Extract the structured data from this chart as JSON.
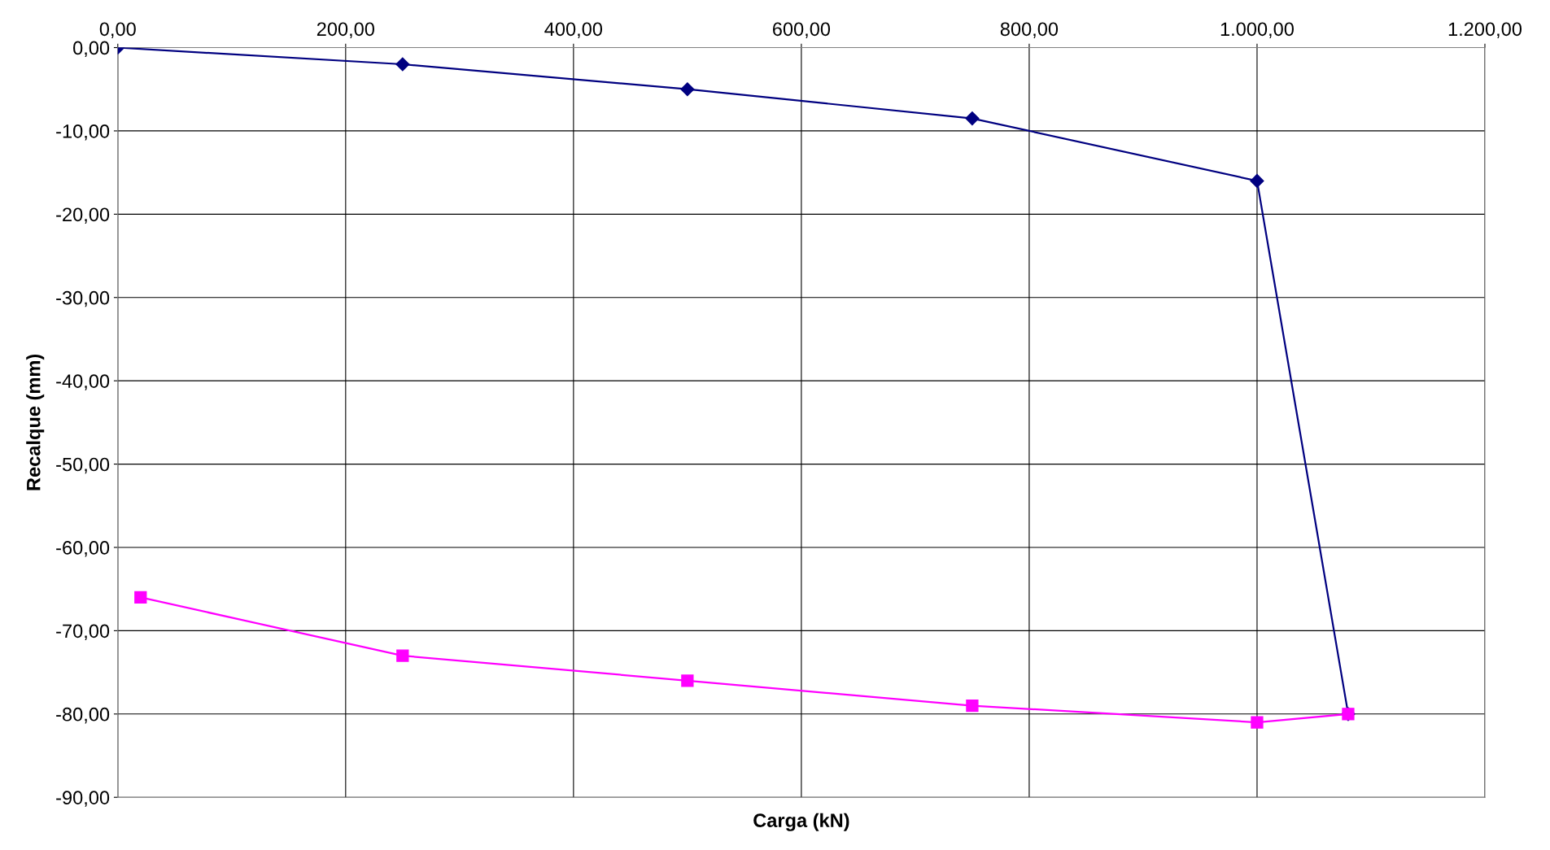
{
  "chart_data": {
    "type": "line",
    "xlabel": "Carga (kN)",
    "ylabel": "Recalque (mm)",
    "xlim": [
      0,
      1200
    ],
    "xticks": [
      {
        "value": 0,
        "label": "0,00"
      },
      {
        "value": 200,
        "label": "200,00"
      },
      {
        "value": 400,
        "label": "400,00"
      },
      {
        "value": 600,
        "label": "600,00"
      },
      {
        "value": 800,
        "label": "800,00"
      },
      {
        "value": 1000,
        "label": "1.000,00"
      },
      {
        "value": 1200,
        "label": "1.200,00"
      }
    ],
    "ylim": [
      -90,
      0
    ],
    "yticks": [
      {
        "value": -90,
        "label": "-90,00"
      },
      {
        "value": -80,
        "label": "-80,00"
      },
      {
        "value": -70,
        "label": "-70,00"
      },
      {
        "value": -60,
        "label": "-60,00"
      },
      {
        "value": -50,
        "label": "-50,00"
      },
      {
        "value": -40,
        "label": "-40,00"
      },
      {
        "value": -30,
        "label": "-30,00"
      },
      {
        "value": -20,
        "label": "-20,00"
      },
      {
        "value": -10,
        "label": "-10,00"
      },
      {
        "value": 0,
        "label": "0,00"
      }
    ],
    "grid": true,
    "line_style": "solid",
    "series": [
      {
        "color": "#000080",
        "marker": "diamond",
        "x": [
          0,
          250,
          500,
          750,
          1000,
          1080
        ],
        "values": [
          0,
          -2,
          -5,
          -8.5,
          -16,
          -80
        ]
      },
      {
        "color": "#ff00ff",
        "marker": "square",
        "x": [
          1080,
          1000,
          750,
          500,
          250,
          20
        ],
        "values": [
          -80,
          -81,
          -79,
          -76,
          -73,
          -66
        ]
      }
    ]
  }
}
